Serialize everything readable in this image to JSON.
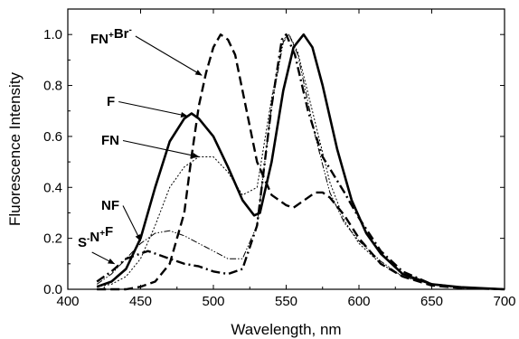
{
  "chart_data": {
    "type": "line",
    "title": "",
    "xlabel": "Wavelength, nm",
    "ylabel": "Fluorescence Intensity",
    "xlim": [
      400,
      700
    ],
    "ylim": [
      0.0,
      1.1
    ],
    "x_ticks": [
      400,
      450,
      500,
      550,
      600,
      650,
      700
    ],
    "x_tick_labels": [
      "400",
      "450",
      "500",
      "550",
      "600",
      "650",
      "700"
    ],
    "y_ticks": [
      0.0,
      0.2,
      0.4,
      0.6,
      0.8,
      1.0
    ],
    "y_tick_labels": [
      "0.0",
      "0.2",
      "0.4",
      "0.6",
      "0.8",
      "1.0"
    ],
    "grid": false,
    "legend": "none",
    "series": [
      {
        "name": "F",
        "style": "solid",
        "points": [
          [
            420,
            0.01
          ],
          [
            430,
            0.03
          ],
          [
            440,
            0.08
          ],
          [
            450,
            0.2
          ],
          [
            460,
            0.4
          ],
          [
            470,
            0.58
          ],
          [
            480,
            0.67
          ],
          [
            485,
            0.69
          ],
          [
            490,
            0.67
          ],
          [
            500,
            0.6
          ],
          [
            510,
            0.48
          ],
          [
            520,
            0.35
          ],
          [
            528,
            0.29
          ],
          [
            532,
            0.3
          ],
          [
            540,
            0.5
          ],
          [
            548,
            0.78
          ],
          [
            555,
            0.95
          ],
          [
            562,
            1.0
          ],
          [
            568,
            0.95
          ],
          [
            575,
            0.8
          ],
          [
            585,
            0.55
          ],
          [
            595,
            0.35
          ],
          [
            605,
            0.22
          ],
          [
            615,
            0.14
          ],
          [
            630,
            0.06
          ],
          [
            650,
            0.02
          ],
          [
            670,
            0.008
          ],
          [
            700,
            0.0
          ]
        ]
      },
      {
        "name": "FN",
        "style": "dotted",
        "points": [
          [
            420,
            0.01
          ],
          [
            430,
            0.02
          ],
          [
            440,
            0.05
          ],
          [
            450,
            0.12
          ],
          [
            460,
            0.25
          ],
          [
            470,
            0.4
          ],
          [
            480,
            0.48
          ],
          [
            490,
            0.52
          ],
          [
            500,
            0.52
          ],
          [
            510,
            0.46
          ],
          [
            520,
            0.37
          ],
          [
            530,
            0.4
          ],
          [
            540,
            0.75
          ],
          [
            548,
            0.98
          ],
          [
            552,
            1.0
          ],
          [
            558,
            0.93
          ],
          [
            568,
            0.7
          ],
          [
            580,
            0.42
          ],
          [
            590,
            0.27
          ],
          [
            600,
            0.18
          ],
          [
            615,
            0.1
          ],
          [
            630,
            0.05
          ],
          [
            650,
            0.02
          ],
          [
            670,
            0.007
          ],
          [
            700,
            0.0
          ]
        ]
      },
      {
        "name": "NF",
        "style": "dash-dot-dot",
        "points": [
          [
            420,
            0.02
          ],
          [
            430,
            0.06
          ],
          [
            440,
            0.12
          ],
          [
            450,
            0.18
          ],
          [
            460,
            0.22
          ],
          [
            470,
            0.23
          ],
          [
            480,
            0.21
          ],
          [
            490,
            0.18
          ],
          [
            500,
            0.15
          ],
          [
            510,
            0.12
          ],
          [
            520,
            0.12
          ],
          [
            530,
            0.25
          ],
          [
            540,
            0.72
          ],
          [
            548,
            0.97
          ],
          [
            552,
            1.0
          ],
          [
            558,
            0.92
          ],
          [
            570,
            0.6
          ],
          [
            580,
            0.38
          ],
          [
            590,
            0.26
          ],
          [
            600,
            0.19
          ],
          [
            615,
            0.11
          ],
          [
            630,
            0.05
          ],
          [
            650,
            0.02
          ],
          [
            670,
            0.007
          ],
          [
            700,
            0.0
          ]
        ]
      },
      {
        "name": "S⁻N⁺F",
        "style": "dash-dot",
        "points": [
          [
            420,
            0.03
          ],
          [
            430,
            0.07
          ],
          [
            440,
            0.12
          ],
          [
            450,
            0.14
          ],
          [
            455,
            0.15
          ],
          [
            460,
            0.14
          ],
          [
            470,
            0.12
          ],
          [
            480,
            0.1
          ],
          [
            490,
            0.09
          ],
          [
            500,
            0.07
          ],
          [
            510,
            0.06
          ],
          [
            520,
            0.08
          ],
          [
            530,
            0.25
          ],
          [
            540,
            0.72
          ],
          [
            547,
            0.98
          ],
          [
            550,
            1.0
          ],
          [
            556,
            0.92
          ],
          [
            565,
            0.7
          ],
          [
            575,
            0.52
          ],
          [
            590,
            0.38
          ],
          [
            600,
            0.28
          ],
          [
            615,
            0.15
          ],
          [
            630,
            0.07
          ],
          [
            650,
            0.02
          ],
          [
            670,
            0.007
          ],
          [
            700,
            0.0
          ]
        ]
      },
      {
        "name": "FN⁺Br⁻",
        "style": "dashed",
        "points": [
          [
            420,
            0.0
          ],
          [
            440,
            0.0
          ],
          [
            450,
            0.01
          ],
          [
            460,
            0.03
          ],
          [
            470,
            0.1
          ],
          [
            480,
            0.3
          ],
          [
            485,
            0.52
          ],
          [
            490,
            0.72
          ],
          [
            495,
            0.85
          ],
          [
            500,
            0.95
          ],
          [
            505,
            1.0
          ],
          [
            510,
            0.98
          ],
          [
            515,
            0.92
          ],
          [
            520,
            0.78
          ],
          [
            530,
            0.5
          ],
          [
            540,
            0.37
          ],
          [
            550,
            0.33
          ],
          [
            555,
            0.32
          ],
          [
            560,
            0.34
          ],
          [
            570,
            0.38
          ],
          [
            575,
            0.38
          ],
          [
            580,
            0.36
          ],
          [
            590,
            0.29
          ],
          [
            600,
            0.2
          ],
          [
            615,
            0.1
          ],
          [
            630,
            0.05
          ],
          [
            650,
            0.015
          ],
          [
            670,
            0.005
          ],
          [
            700,
            0.0
          ]
        ]
      }
    ],
    "annotations": [
      {
        "base": "FN",
        "sup1": "+",
        "mid": "Br",
        "sup2": "-",
        "series": "FN⁺Br⁻",
        "target": [
          492,
          0.84
        ]
      },
      {
        "base": "F",
        "sup1": "",
        "mid": "",
        "sup2": "",
        "series": "F",
        "target": [
          482,
          0.68
        ]
      },
      {
        "base": "FN",
        "sup1": "",
        "mid": "",
        "sup2": "",
        "series": "FN",
        "target": [
          490,
          0.52
        ]
      },
      {
        "base": "NF",
        "sup1": "",
        "mid": "",
        "sup2": "",
        "series": "NF",
        "target": [
          450,
          0.19
        ]
      },
      {
        "base": "S",
        "sup1": "-",
        "mid": "N",
        "sup2": "+",
        "tail": "F",
        "series": "S⁻N⁺F",
        "target": [
          432,
          0.1
        ]
      }
    ]
  }
}
